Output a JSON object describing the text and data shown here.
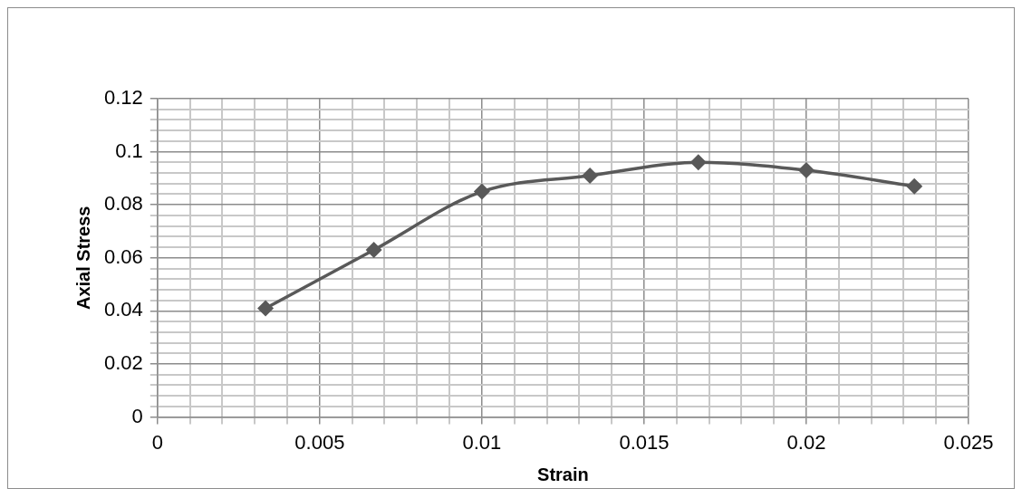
{
  "chart_data": {
    "type": "line",
    "xlabel": "Strain",
    "ylabel": "Axial Stress",
    "series": [
      {
        "color": "#595959",
        "x": [
          0.00333,
          0.00667,
          0.01,
          0.01333,
          0.01667,
          0.02,
          0.02333
        ],
        "values": [
          0.041,
          0.063,
          0.085,
          0.091,
          0.096,
          0.093,
          0.087
        ]
      }
    ],
    "xlim": [
      0,
      0.025
    ],
    "xticks": [
      0,
      {
        "value": 0.001,
        "label": null
      },
      {
        "value": 0.002,
        "label": null
      },
      {
        "value": 0.003,
        "label": null
      },
      {
        "value": 0.004,
        "label": null
      },
      0.005,
      {
        "value": 0.006,
        "label": null
      },
      {
        "value": 0.007,
        "label": null
      },
      {
        "value": 0.008,
        "label": null
      },
      {
        "value": 0.009,
        "label": null
      },
      0.01,
      {
        "value": 0.011,
        "label": null
      },
      {
        "value": 0.012,
        "label": null
      },
      {
        "value": 0.013,
        "label": null
      },
      {
        "value": 0.014,
        "label": null
      },
      0.015,
      {
        "value": 0.016,
        "label": null
      },
      {
        "value": 0.017,
        "label": null
      },
      {
        "value": 0.018,
        "label": null
      },
      {
        "value": 0.019,
        "label": null
      },
      0.02,
      {
        "value": 0.021,
        "label": null
      },
      {
        "value": 0.022,
        "label": null
      },
      {
        "value": 0.023,
        "label": null
      },
      {
        "value": 0.024,
        "label": null
      },
      0.025
    ],
    "ylim": [
      0,
      0.12
    ],
    "yticks": [
      0,
      {
        "value": 0.004,
        "label": null
      },
      {
        "value": 0.008,
        "label": null
      },
      {
        "value": 0.012,
        "label": null
      },
      {
        "value": 0.016,
        "label": null
      },
      0.02,
      {
        "value": 0.024,
        "label": null
      },
      {
        "value": 0.028,
        "label": null
      },
      {
        "value": 0.032,
        "label": null
      },
      {
        "value": 0.036,
        "label": null
      },
      0.04,
      {
        "value": 0.044,
        "label": null
      },
      {
        "value": 0.048,
        "label": null
      },
      {
        "value": 0.052,
        "label": null
      },
      {
        "value": 0.056,
        "label": null
      },
      0.06,
      {
        "value": 0.064,
        "label": null
      },
      {
        "value": 0.068,
        "label": null
      },
      {
        "value": 0.072,
        "label": null
      },
      {
        "value": 0.076,
        "label": null
      },
      0.08,
      {
        "value": 0.084,
        "label": null
      },
      {
        "value": 0.088,
        "label": null
      },
      {
        "value": 0.092,
        "label": null
      },
      {
        "value": 0.096,
        "label": null
      },
      0.1,
      {
        "value": 0.104,
        "label": null
      },
      {
        "value": 0.108,
        "label": null
      },
      {
        "value": 0.112,
        "label": null
      },
      {
        "value": 0.116,
        "label": null
      },
      0.12
    ],
    "grid": true,
    "marker": "diamond",
    "line_style": "solid",
    "legend": false
  }
}
